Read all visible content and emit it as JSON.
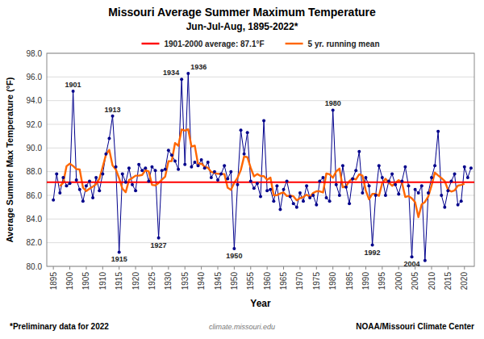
{
  "chart_data": {
    "type": "line",
    "title": "Missouri Average Summer Maximum Temperature",
    "subtitle": "Jun-Jul-Aug, 1895-2022*",
    "xlabel": "Year",
    "ylabel": "Average Summer Max Temperature (°F)",
    "x": [
      1895,
      1896,
      1897,
      1898,
      1899,
      1900,
      1901,
      1902,
      1903,
      1904,
      1905,
      1906,
      1907,
      1908,
      1909,
      1910,
      1911,
      1912,
      1913,
      1914,
      1915,
      1916,
      1917,
      1918,
      1919,
      1920,
      1921,
      1922,
      1923,
      1924,
      1925,
      1926,
      1927,
      1928,
      1929,
      1930,
      1931,
      1932,
      1933,
      1934,
      1935,
      1936,
      1937,
      1938,
      1939,
      1940,
      1941,
      1942,
      1943,
      1944,
      1945,
      1946,
      1947,
      1948,
      1949,
      1950,
      1951,
      1952,
      1953,
      1954,
      1955,
      1956,
      1957,
      1958,
      1959,
      1960,
      1961,
      1962,
      1963,
      1964,
      1965,
      1966,
      1967,
      1968,
      1969,
      1970,
      1971,
      1972,
      1973,
      1974,
      1975,
      1976,
      1977,
      1978,
      1979,
      1980,
      1981,
      1982,
      1983,
      1984,
      1985,
      1986,
      1987,
      1988,
      1989,
      1990,
      1991,
      1992,
      1993,
      1994,
      1995,
      1996,
      1997,
      1998,
      1999,
      2000,
      2001,
      2002,
      2003,
      2004,
      2005,
      2006,
      2007,
      2008,
      2009,
      2010,
      2011,
      2012,
      2013,
      2014,
      2015,
      2016,
      2017,
      2018,
      2019,
      2020,
      2021,
      2022
    ],
    "series": [
      {
        "color": "#00008B",
        "marker": "circle",
        "values": [
          85.6,
          87.8,
          86.2,
          87.5,
          86.8,
          87.0,
          94.8,
          87.3,
          86.5,
          85.5,
          86.8,
          87.2,
          85.8,
          87.5,
          86.4,
          87.8,
          89.5,
          90.8,
          92.7,
          88.4,
          81.2,
          87.8,
          87.1,
          88.3,
          86.9,
          86.4,
          88.6,
          88.1,
          88.3,
          87.2,
          88.4,
          88.1,
          82.4,
          88.1,
          88.2,
          89.8,
          89.4,
          88.9,
          88.2,
          95.8,
          88.6,
          96.3,
          88.4,
          88.8,
          88.5,
          89.0,
          88.3,
          88.8,
          87.5,
          88.0,
          87.3,
          87.8,
          88.5,
          87.4,
          88.0,
          81.5,
          86.9,
          91.5,
          89.5,
          91.3,
          87.2,
          86.6,
          87.0,
          85.9,
          92.3,
          86.4,
          86.5,
          85.5,
          86.8,
          84.8,
          86.5,
          87.2,
          85.9,
          85.3,
          85.0,
          86.2,
          85.5,
          86.8,
          85.8,
          86.0,
          85.2,
          87.2,
          87.5,
          85.8,
          85.5,
          93.2,
          86.9,
          86.0,
          88.5,
          86.7,
          85.3,
          87.4,
          88.1,
          89.7,
          86.2,
          87.5,
          86.8,
          81.8,
          86.0,
          88.5,
          87.5,
          86.0,
          87.2,
          87.8,
          86.9,
          86.1,
          87.2,
          88.4,
          86.8,
          80.8,
          86.5,
          86.2,
          86.8,
          80.5,
          86.2,
          87.5,
          88.5,
          91.4,
          86.0,
          85.0,
          86.4,
          87.2,
          87.8,
          85.2,
          85.5,
          88.4,
          87.5,
          88.3
        ]
      },
      {
        "name": "5 yr. running mean",
        "color": "#FF6600",
        "marker": "none",
        "values": [
          null,
          null,
          86.78,
          87.06,
          88.46,
          88.68,
          88.48,
          88.22,
          88.18,
          86.66,
          86.36,
          86.56,
          86.74,
          86.94,
          87.4,
          88.4,
          89.44,
          89.84,
          88.52,
          88.18,
          87.44,
          86.56,
          86.26,
          87.3,
          87.46,
          87.66,
          87.66,
          87.72,
          88.12,
          88.02,
          86.88,
          86.84,
          87.04,
          87.32,
          87.58,
          88.88,
          88.9,
          90.42,
          90.18,
          91.56,
          91.46,
          91.58,
          90.12,
          90.2,
          88.6,
          88.68,
          88.42,
          88.32,
          87.98,
          87.88,
          87.82,
          87.8,
          87.8,
          86.64,
          86.46,
          87.06,
          87.48,
          88.14,
          89.28,
          89.22,
          88.32,
          87.6,
          87.8,
          87.64,
          87.62,
          87.32,
          87.5,
          86.0,
          86.02,
          86.16,
          86.24,
          85.94,
          85.98,
          85.92,
          85.58,
          85.76,
          85.86,
          86.06,
          85.86,
          86.2,
          86.34,
          86.34,
          86.24,
          87.84,
          87.78,
          87.48,
          88.02,
          88.26,
          86.68,
          86.78,
          87.2,
          87.44,
          87.34,
          87.78,
          87.66,
          86.4,
          85.66,
          86.12,
          86.12,
          85.96,
          87.04,
          87.4,
          87.08,
          86.8,
          87.04,
          87.28,
          87.08,
          85.86,
          85.94,
          85.74,
          85.42,
          84.16,
          85.24,
          85.44,
          85.9,
          86.82,
          87.92,
          87.68,
          87.46,
          87.2,
          86.48,
          86.32,
          86.42,
          86.82,
          86.88,
          86.98,
          null,
          null
        ]
      }
    ],
    "average": {
      "name": "1901-2000 average: 87.1°F",
      "value": 87.1,
      "color": "#FF0000"
    },
    "xlim": [
      1893,
      2023
    ],
    "xticks": [
      1895,
      1900,
      1905,
      1910,
      1915,
      1920,
      1925,
      1930,
      1935,
      1940,
      1945,
      1950,
      1955,
      1960,
      1965,
      1970,
      1975,
      1980,
      1985,
      1990,
      1995,
      2000,
      2005,
      2010,
      2015,
      2020
    ],
    "ylim": [
      80.0,
      98.0
    ],
    "yticks": [
      {
        "value": 80.0,
        "label": "80.0"
      },
      {
        "value": 82.0,
        "label": "82.0"
      },
      {
        "value": 84.0,
        "label": "84.0"
      },
      {
        "value": 86.0,
        "label": "86.0"
      },
      {
        "value": 88.0,
        "label": "88.0"
      },
      {
        "value": 90.0,
        "label": "90.0"
      },
      {
        "value": 92.0,
        "label": "92.0"
      },
      {
        "value": 94.0,
        "label": "94.0"
      },
      {
        "value": 96.0,
        "label": "96.0"
      },
      {
        "value": 98.0,
        "label": "98.0"
      }
    ],
    "grid": true,
    "legend": "top",
    "annotations": [
      {
        "x": 1901,
        "y": 94.8,
        "text": "1901"
      },
      {
        "x": 1913,
        "y": 92.7,
        "text": "1913"
      },
      {
        "x": 1915,
        "y": 81.2,
        "text": "1915"
      },
      {
        "x": 1927,
        "y": 82.4,
        "text": "1927"
      },
      {
        "x": 1934,
        "y": 95.8,
        "text": "1934"
      },
      {
        "x": 1936,
        "y": 96.3,
        "text": "1936"
      },
      {
        "x": 1950,
        "y": 81.5,
        "text": "1950"
      },
      {
        "x": 1980,
        "y": 93.2,
        "text": "1980"
      },
      {
        "x": 1992,
        "y": 81.8,
        "text": "1992"
      },
      {
        "x": 2004,
        "y": 80.8,
        "text": "2004"
      }
    ],
    "footnote_left": "*Preliminary data for 2022",
    "footnote_right": "NOAA/Missouri Climate Center",
    "watermark": "climate.missouri.edu"
  }
}
